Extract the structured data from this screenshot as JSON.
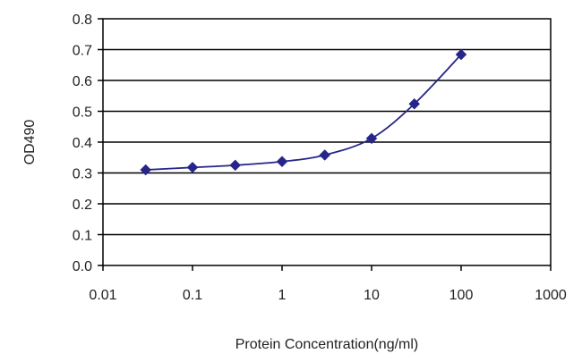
{
  "chart_data": {
    "type": "scatter",
    "title": "",
    "xlabel": "Protein Concentration(ng/ml)",
    "ylabel": "OD490",
    "x_scale": "log",
    "xlim": [
      0.01,
      1000
    ],
    "ylim": [
      0,
      0.8
    ],
    "x_ticks": [
      0.01,
      0.1,
      1,
      10,
      100,
      1000
    ],
    "x_tick_labels": [
      "0.01",
      "0.1",
      "1",
      "10",
      "100",
      "1000"
    ],
    "y_ticks": [
      0,
      0.1,
      0.2,
      0.3,
      0.4,
      0.5,
      0.6,
      0.7,
      0.8
    ],
    "y_tick_labels": [
      "0.0",
      "0.1",
      "0.2",
      "0.3",
      "0.4",
      "0.5",
      "0.6",
      "0.7",
      "0.8"
    ],
    "grid": "horizontal",
    "legend": "none",
    "series": [
      {
        "x": [
          0.03,
          0.1,
          0.3,
          1,
          3,
          10,
          30,
          100
        ],
        "y": [
          0.31,
          0.318,
          0.325,
          0.337,
          0.358,
          0.412,
          0.524,
          0.684
        ],
        "marker": "diamond",
        "fit_line": true
      }
    ],
    "colors": {
      "series": "#26268a",
      "grid": "#000000",
      "axis": "#000000"
    }
  }
}
